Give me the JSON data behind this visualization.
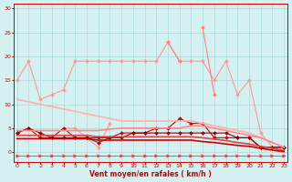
{
  "x": [
    0,
    1,
    2,
    3,
    4,
    5,
    6,
    7,
    8,
    9,
    10,
    11,
    12,
    13,
    14,
    15,
    16,
    17,
    18,
    19,
    20,
    21,
    22,
    23
  ],
  "lines": [
    {
      "label": "line_lightest_top",
      "color": "#ff9999",
      "lw": 0.8,
      "marker": "D",
      "markersize": 2.0,
      "y": [
        15,
        19,
        11,
        12,
        13,
        19,
        19,
        19,
        19,
        19,
        19,
        19,
        19,
        23,
        19,
        19,
        19,
        15,
        19,
        12,
        15,
        4,
        1,
        1
      ]
    },
    {
      "label": "line_light2",
      "color": "#ff9999",
      "lw": 0.8,
      "marker": "D",
      "markersize": 2.0,
      "y": [
        null,
        null,
        null,
        null,
        5,
        5,
        3,
        1,
        6,
        null,
        null,
        null,
        null,
        null,
        null,
        null,
        null,
        null,
        null,
        null,
        null,
        null,
        null,
        null
      ]
    },
    {
      "label": "line_med_spike",
      "color": "#ff8080",
      "lw": 0.8,
      "marker": "D",
      "markersize": 2.0,
      "y": [
        null,
        null,
        null,
        null,
        null,
        null,
        null,
        null,
        null,
        null,
        null,
        null,
        null,
        23,
        19,
        null,
        26,
        12,
        null,
        null,
        null,
        null,
        null,
        null
      ]
    },
    {
      "label": "line_dark_red_main",
      "color": "#cc0000",
      "lw": 0.8,
      "marker": "D",
      "markersize": 2.0,
      "y": [
        4,
        5,
        3,
        3,
        5,
        3,
        3,
        2,
        3,
        4,
        4,
        4,
        5,
        5,
        7,
        6,
        6,
        3,
        3,
        3,
        3,
        1,
        1,
        1
      ]
    },
    {
      "label": "line_darkest",
      "color": "#990000",
      "lw": 0.8,
      "marker": "D",
      "markersize": 2.0,
      "y": [
        4,
        5,
        4,
        3,
        3,
        3,
        3,
        3,
        3,
        3,
        4,
        4,
        4,
        4,
        4,
        4,
        4,
        4,
        4,
        3,
        3,
        1,
        1,
        1
      ]
    },
    {
      "label": "trend_lightest",
      "color": "#ffb0b0",
      "lw": 1.2,
      "marker": null,
      "y": [
        11,
        10.5,
        10,
        9.5,
        9,
        8.5,
        8,
        7.5,
        7,
        6.5,
        6.5,
        6.5,
        6.5,
        6.5,
        6.5,
        6.5,
        6,
        5.5,
        5,
        4.5,
        4,
        3,
        2,
        1
      ]
    },
    {
      "label": "trend_light2",
      "color": "#ff8888",
      "lw": 1.2,
      "marker": null,
      "y": [
        4.5,
        4.5,
        4.5,
        4.5,
        4.5,
        4.5,
        4.5,
        4.5,
        4.8,
        5,
        5,
        5,
        5,
        5,
        5,
        5.5,
        5.5,
        5,
        4.5,
        4,
        3.5,
        3,
        2,
        1
      ]
    },
    {
      "label": "trend_medium",
      "color": "#dd4444",
      "lw": 1.2,
      "marker": null,
      "y": [
        3.5,
        3.5,
        3.5,
        3.5,
        3.5,
        3.5,
        3.5,
        3.2,
        3.2,
        3.2,
        3.2,
        3.2,
        3.2,
        3.2,
        3.2,
        3.2,
        3.0,
        2.7,
        2.4,
        2.0,
        1.7,
        1.2,
        0.8,
        0.3
      ]
    },
    {
      "label": "trend_dark",
      "color": "#cc0000",
      "lw": 1.2,
      "marker": null,
      "y": [
        2.8,
        2.8,
        2.8,
        2.8,
        2.8,
        2.8,
        2.8,
        2.5,
        2.5,
        2.5,
        2.5,
        2.5,
        2.5,
        2.5,
        2.5,
        2.5,
        2.2,
        2.0,
        1.7,
        1.4,
        1.2,
        0.8,
        0.4,
        0.1
      ]
    },
    {
      "label": "arrows_row",
      "color": "#ff3333",
      "lw": 0.6,
      "marker": ">",
      "markersize": 2.5,
      "y": [
        -0.8,
        -0.8,
        -0.8,
        -0.8,
        -0.8,
        -0.8,
        -0.8,
        -0.8,
        -0.8,
        -0.8,
        -0.8,
        -0.8,
        -0.8,
        -0.8,
        -0.8,
        -0.8,
        -0.8,
        -0.8,
        -0.8,
        -0.8,
        -0.8,
        -0.8,
        -0.8,
        -0.8
      ]
    }
  ],
  "xlim": [
    0,
    23
  ],
  "ylim": [
    -2,
    31
  ],
  "yticks": [
    0,
    5,
    10,
    15,
    20,
    25,
    30
  ],
  "xtick_labels": [
    "0",
    "1",
    "2",
    "3",
    "4",
    "5",
    "6",
    "7",
    "8",
    "9",
    "10",
    "11",
    "12",
    "13",
    "14",
    "15",
    "16",
    "17",
    "18",
    "19",
    "20",
    "21",
    "22",
    "23"
  ],
  "xlabel": "Vent moyen/en rafales ( km/h )",
  "bgcolor": "#d4f0f0",
  "grid_color": "#aadddd",
  "axis_color": "#cc0000",
  "label_color": "#cc0000",
  "tick_color": "#cc0000"
}
